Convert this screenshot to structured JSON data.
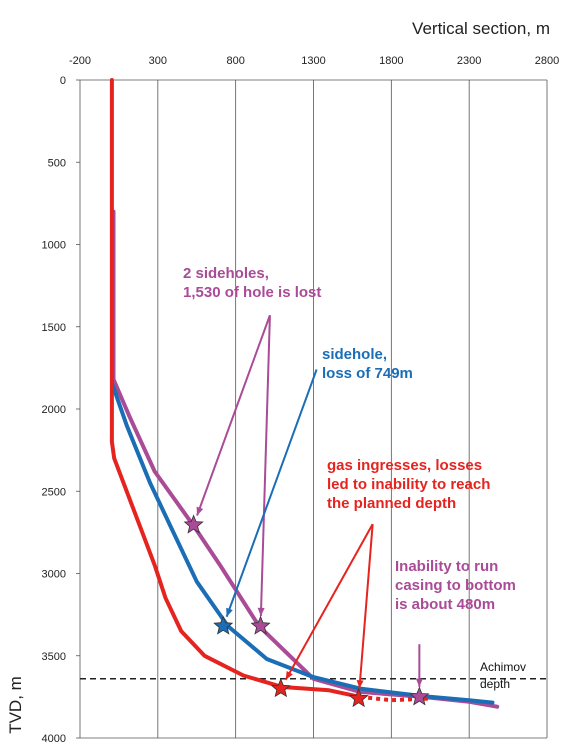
{
  "chart_data": {
    "type": "line",
    "xlabel": "Vertical section, m",
    "ylabel": "TVD, m",
    "x_axis_position": "top",
    "y_inverted": true,
    "xlim": [
      -200,
      2800
    ],
    "ylim": [
      0,
      4000
    ],
    "x_ticks": [
      -200,
      300,
      800,
      1300,
      1800,
      2300,
      2800
    ],
    "y_ticks": [
      0,
      500,
      1000,
      1500,
      2000,
      2500,
      3000,
      3500,
      4000
    ],
    "grid": "vertical",
    "colors": {
      "red": "#e52420",
      "blue": "#1b6db5",
      "purple": "#a94b96",
      "dark": "#222222"
    },
    "series": [
      {
        "color": "#e52420",
        "points": [
          [
            5,
            0
          ],
          [
            5,
            2200
          ],
          [
            20,
            2300
          ],
          [
            100,
            2500
          ],
          [
            200,
            2750
          ],
          [
            280,
            2950
          ],
          [
            350,
            3150
          ],
          [
            450,
            3350
          ],
          [
            600,
            3500
          ],
          [
            850,
            3620
          ],
          [
            1100,
            3690
          ],
          [
            1400,
            3710
          ],
          [
            1600,
            3750
          ]
        ],
        "dotted_extension": [
          [
            1600,
            3750
          ],
          [
            1800,
            3770
          ],
          [
            2050,
            3760
          ]
        ]
      },
      {
        "color": "#1b6db5",
        "points": [
          [
            8,
            1850
          ],
          [
            100,
            2100
          ],
          [
            250,
            2450
          ],
          [
            400,
            2750
          ],
          [
            550,
            3050
          ],
          [
            750,
            3320
          ],
          [
            1000,
            3520
          ],
          [
            1300,
            3630
          ],
          [
            1600,
            3700
          ],
          [
            2000,
            3745
          ],
          [
            2300,
            3770
          ],
          [
            2450,
            3785
          ]
        ]
      },
      {
        "color": "#a94b96",
        "points": [
          [
            15,
            800
          ],
          [
            15,
            1820
          ],
          [
            120,
            2050
          ],
          [
            280,
            2380
          ],
          [
            530,
            2710
          ],
          [
            700,
            2950
          ],
          [
            950,
            3320
          ],
          [
            1300,
            3640
          ],
          [
            1600,
            3720
          ],
          [
            2000,
            3750
          ],
          [
            2300,
            3780
          ],
          [
            2480,
            3810
          ]
        ]
      }
    ],
    "markers": [
      {
        "x": 530,
        "y": 2705,
        "color": "#a94b96"
      },
      {
        "x": 960,
        "y": 3320,
        "color": "#a94b96"
      },
      {
        "x": 720,
        "y": 3320,
        "color": "#1b6db5"
      },
      {
        "x": 1090,
        "y": 3700,
        "color": "#e52420"
      },
      {
        "x": 1590,
        "y": 3760,
        "color": "#e52420"
      },
      {
        "x": 1980,
        "y": 3750,
        "color": "#a94b96"
      }
    ],
    "reference_line": {
      "y": 3640,
      "style": "dashed",
      "label": "Achimov\ndepth"
    },
    "annotations": [
      {
        "lines": [
          "2 sideholes,",
          "1,530 of hole is lost"
        ],
        "color": "#a94b96",
        "anchor": [
          1020,
          1430
        ],
        "targets": [
          [
            530,
            2705
          ],
          [
            960,
            3320
          ]
        ]
      },
      {
        "lines": [
          "sidehole,",
          "loss of 749m"
        ],
        "color": "#1b6db5",
        "anchor": [
          1320,
          1760
        ],
        "targets": [
          [
            720,
            3320
          ]
        ]
      },
      {
        "lines": [
          "gas ingresses, losses",
          "led to inability to reach",
          "the planned depth"
        ],
        "color": "#e52420",
        "anchor": [
          1680,
          2700
        ],
        "targets": [
          [
            1090,
            3700
          ],
          [
            1590,
            3760
          ]
        ]
      },
      {
        "lines": [
          "Inability to run",
          "casing to bottom",
          "is about 480m"
        ],
        "color": "#a94b96",
        "anchor": [
          1980,
          3430
        ],
        "targets": [
          [
            1980,
            3750
          ]
        ]
      }
    ]
  }
}
